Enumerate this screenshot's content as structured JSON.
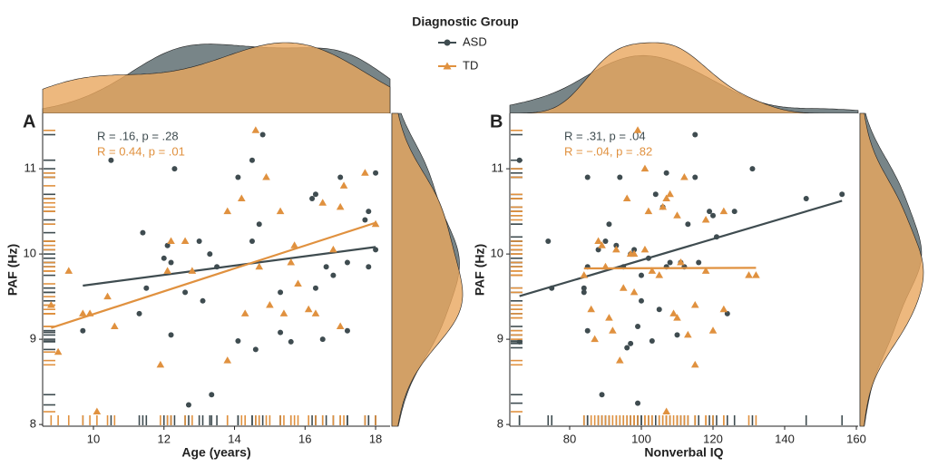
{
  "chart_data": [
    {
      "type": "scatter",
      "panel_label": "A",
      "legend_title": "Diagnostic Group",
      "xlabel": "Age (years)",
      "ylabel": "PAF (Hz)",
      "annotations": [
        "R = .16, p = .28",
        "R = 0.44, p = .01"
      ],
      "xlim": [
        8.56,
        18.41
      ],
      "xticks": [
        10,
        12,
        14,
        16,
        18
      ],
      "ylim": [
        7.98,
        11.65
      ],
      "yticks": [
        8,
        9,
        10,
        11
      ],
      "series": [
        {
          "name": "ASD",
          "color": "#3f4c50",
          "x": [
            10.5,
            12.3,
            14.8,
            14.5,
            14.1,
            16.3,
            16.2,
            17.0,
            17.8,
            17.7,
            18.0,
            11.4,
            13.0,
            12.1,
            14.5,
            14.7,
            12.2,
            12.0,
            13.3,
            11.5,
            13.5,
            16.6,
            16.8,
            17.2,
            17.8,
            18.0,
            12.6,
            11.3,
            15.3,
            16.3,
            13.1,
            9.7,
            12.2,
            14.1,
            15.3,
            15.6,
            16.5,
            17.2,
            14.6,
            13.35,
            12.7
          ],
          "values": [
            11.1,
            11.0,
            11.4,
            11.1,
            10.9,
            10.7,
            10.65,
            10.9,
            10.5,
            10.4,
            10.95,
            10.25,
            10.15,
            10.1,
            10.15,
            10.35,
            9.9,
            9.95,
            10.0,
            9.6,
            9.85,
            9.85,
            9.75,
            9.9,
            9.85,
            10.05,
            9.55,
            9.3,
            9.55,
            9.6,
            9.45,
            9.1,
            9.05,
            8.98,
            9.08,
            8.97,
            9.0,
            9.1,
            8.88,
            8.35,
            8.23
          ]
        },
        {
          "name": "TD",
          "color": "#e0913f",
          "x": [
            14.6,
            9.3,
            9.7,
            9.9,
            10.4,
            10.6,
            11.9,
            12.1,
            12.2,
            12.6,
            12.8,
            13.8,
            14.2,
            14.3,
            13.8,
            14.9,
            15.0,
            15.3,
            15.4,
            15.6,
            15.7,
            15.8,
            16.1,
            16.3,
            16.5,
            16.8,
            17.0,
            17.0,
            17.7,
            18.0,
            14.7,
            9.0,
            8.8,
            10.1,
            17.1
          ],
          "values": [
            11.45,
            9.8,
            9.3,
            9.3,
            9.5,
            9.15,
            8.7,
            9.8,
            10.15,
            10.15,
            9.8,
            10.5,
            10.65,
            9.3,
            8.75,
            10.9,
            9.4,
            10.5,
            9.3,
            9.9,
            10.1,
            9.65,
            9.35,
            9.3,
            10.6,
            10.05,
            10.55,
            9.15,
            10.95,
            10.35,
            9.85,
            8.85,
            9.4,
            8.15,
            10.8
          ]
        }
      ]
    },
    {
      "type": "scatter",
      "panel_label": "B",
      "xlabel": "Nonverbal IQ",
      "ylabel": "PAF (Hz)",
      "annotations": [
        "R = .31, p = .04",
        "R = −.04, p = .82"
      ],
      "xlim": [
        63.3,
        160.5
      ],
      "xticks": [
        80,
        100,
        120,
        140,
        160
      ],
      "ylim": [
        7.98,
        11.65
      ],
      "yticks": [
        8,
        9,
        10,
        11
      ],
      "series": [
        {
          "name": "ASD",
          "color": "#3f4c50",
          "x": [
            66,
            66,
            74,
            75,
            85,
            84,
            84,
            85,
            85,
            88,
            89,
            90,
            91,
            93,
            94,
            95,
            96,
            97,
            97,
            98,
            99,
            99,
            100,
            100,
            102,
            103,
            104,
            105,
            106,
            107,
            107,
            108,
            110,
            111,
            112,
            113,
            115,
            115,
            116,
            119,
            120,
            121,
            124,
            126,
            131,
            146,
            156
          ],
          "values": [
            11.1,
            8.97,
            10.15,
            9.6,
            10.9,
            9.6,
            9.55,
            9.85,
            9.1,
            10.05,
            8.35,
            10.15,
            10.35,
            10.1,
            10.9,
            9.85,
            8.9,
            8.95,
            10.0,
            10.05,
            9.15,
            8.25,
            9.75,
            9.45,
            9.95,
            8.98,
            10.7,
            9.35,
            10.55,
            10.95,
            9.85,
            9.9,
            9.05,
            9.9,
            9.85,
            10.35,
            11.4,
            10.9,
            9.9,
            10.5,
            10.45,
            10.2,
            9.3,
            10.5,
            11.0,
            10.65,
            10.7
          ]
        },
        {
          "name": "TD",
          "color": "#e0913f",
          "x": [
            99,
            88,
            89,
            90,
            91,
            92,
            93,
            94,
            95,
            96,
            97,
            98,
            101,
            102,
            103,
            105,
            106,
            107,
            107,
            108,
            109,
            110,
            110,
            111,
            112,
            113,
            115,
            115,
            118,
            120,
            123,
            123,
            130,
            132,
            87,
            86,
            84,
            98,
            101,
            118
          ],
          "values": [
            11.45,
            10.15,
            10.1,
            9.85,
            9.25,
            9.1,
            10.05,
            8.75,
            9.6,
            10.65,
            10.0,
            10.0,
            10.05,
            10.5,
            9.8,
            9.75,
            10.55,
            10.65,
            8.15,
            10.7,
            9.3,
            9.25,
            10.45,
            9.9,
            10.9,
            9.05,
            9.4,
            8.7,
            10.4,
            9.1,
            10.5,
            9.35,
            9.75,
            9.75,
            9.0,
            9.35,
            9.75,
            9.55,
            11.0,
            9.8
          ]
        }
      ]
    }
  ]
}
